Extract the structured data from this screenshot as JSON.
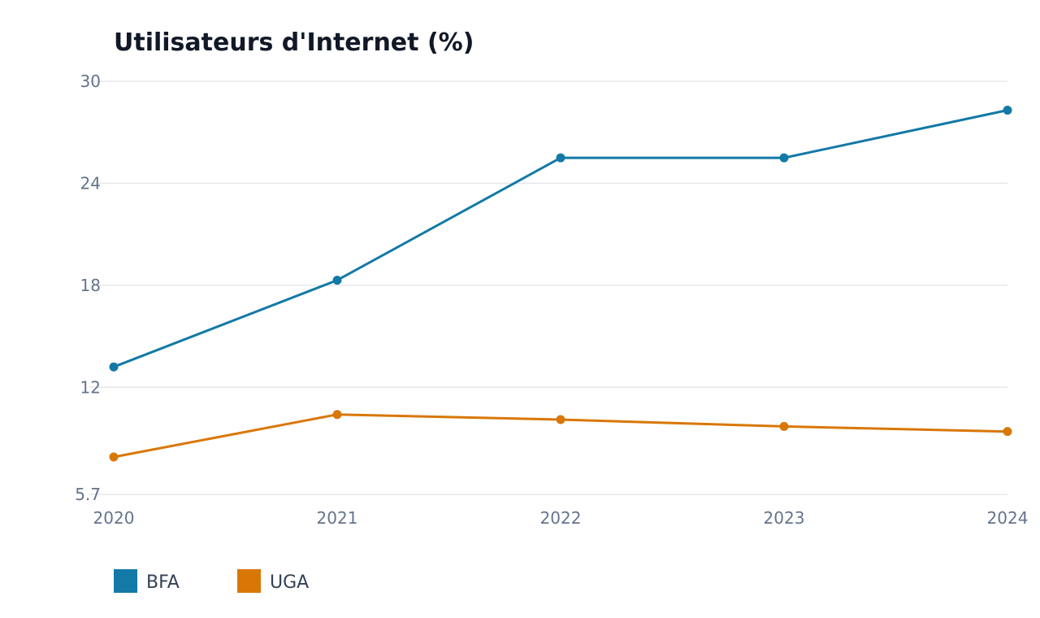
{
  "chart_data": {
    "type": "line",
    "title": "Utilisateurs d'Internet (%)",
    "x": [
      "2020",
      "2021",
      "2022",
      "2023",
      "2024"
    ],
    "y_ticks": [
      "5.7",
      "12",
      "18",
      "24",
      "30"
    ],
    "ylim": [
      5.7,
      30
    ],
    "grid": true,
    "legend_position": "bottom-left",
    "series": [
      {
        "name": "BFA",
        "color": "#1379a6",
        "values": [
          13.2,
          18.3,
          25.5,
          25.5,
          28.3
        ]
      },
      {
        "name": "UGA",
        "color": "#d97706",
        "values": [
          7.9,
          10.4,
          10.1,
          9.7,
          9.4
        ]
      }
    ]
  }
}
